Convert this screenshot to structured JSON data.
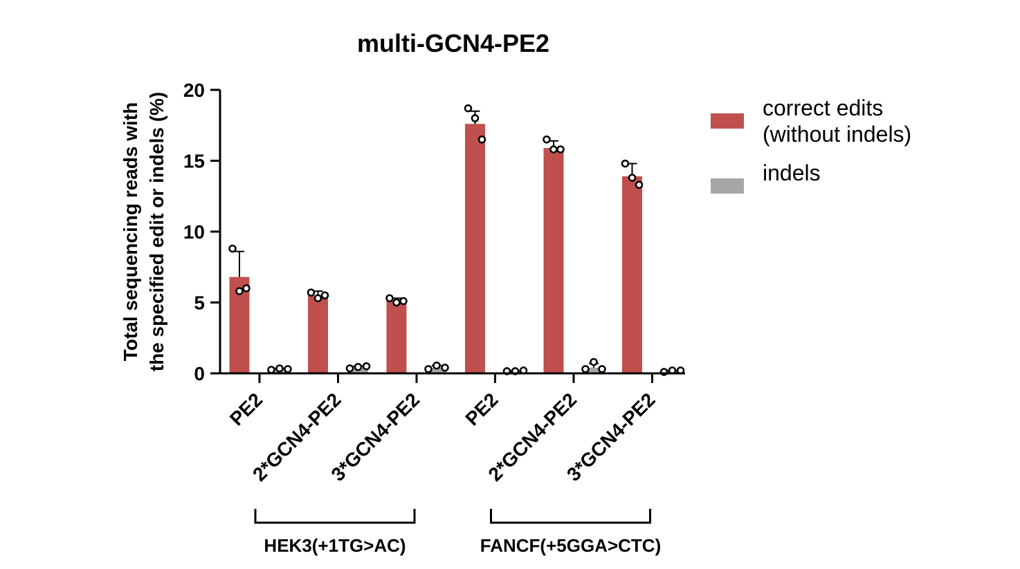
{
  "chart_data": {
    "type": "bar",
    "title": "multi-GCN4-PE2",
    "ylabel_line1": "Total sequencing reads with",
    "ylabel_line2": "the specified edit or indels (%)",
    "xlabel": "",
    "ylim": [
      0,
      20
    ],
    "yticks": [
      0,
      5,
      10,
      15,
      20
    ],
    "categories": [
      "PE2",
      "2*GCN4-PE2",
      "3*GCN4-PE2",
      "PE2",
      "2*GCN4-PE2",
      "3*GCN4-PE2"
    ],
    "groups": [
      {
        "label": "HEK3(+1TG>AC)",
        "categories": [
          0,
          1,
          2
        ]
      },
      {
        "label": "FANCF(+5GGA>CTC)",
        "categories": [
          3,
          4,
          5
        ]
      }
    ],
    "series": [
      {
        "name": "correct edits\n(without indels)",
        "name_lines": [
          "correct edits",
          "(without indels)"
        ],
        "color": "#c0504d",
        "values": [
          6.8,
          5.5,
          5.1,
          17.6,
          15.9,
          13.9
        ],
        "error": [
          1.8,
          0.3,
          0.2,
          0.9,
          0.5,
          0.9
        ],
        "points": [
          [
            8.8,
            5.8,
            6.0
          ],
          [
            5.7,
            5.3,
            5.5
          ],
          [
            5.3,
            5.0,
            5.1
          ],
          [
            18.7,
            18.0,
            16.5
          ],
          [
            16.5,
            15.8,
            15.8
          ],
          [
            14.8,
            13.8,
            13.3
          ]
        ]
      },
      {
        "name": "indels",
        "name_lines": [
          "indels"
        ],
        "color": "#a6a6a6",
        "values": [
          0.3,
          0.4,
          0.4,
          0.15,
          0.4,
          0.15
        ],
        "error": [
          0.05,
          0.1,
          0.15,
          0.03,
          0.3,
          0.05
        ],
        "points": [
          [
            0.25,
            0.35,
            0.3
          ],
          [
            0.35,
            0.45,
            0.5
          ],
          [
            0.3,
            0.55,
            0.4
          ],
          [
            0.15,
            0.15,
            0.2
          ],
          [
            0.3,
            0.8,
            0.3
          ],
          [
            0.1,
            0.2,
            0.2
          ]
        ]
      }
    ],
    "legend_position": "right",
    "grid": false
  }
}
